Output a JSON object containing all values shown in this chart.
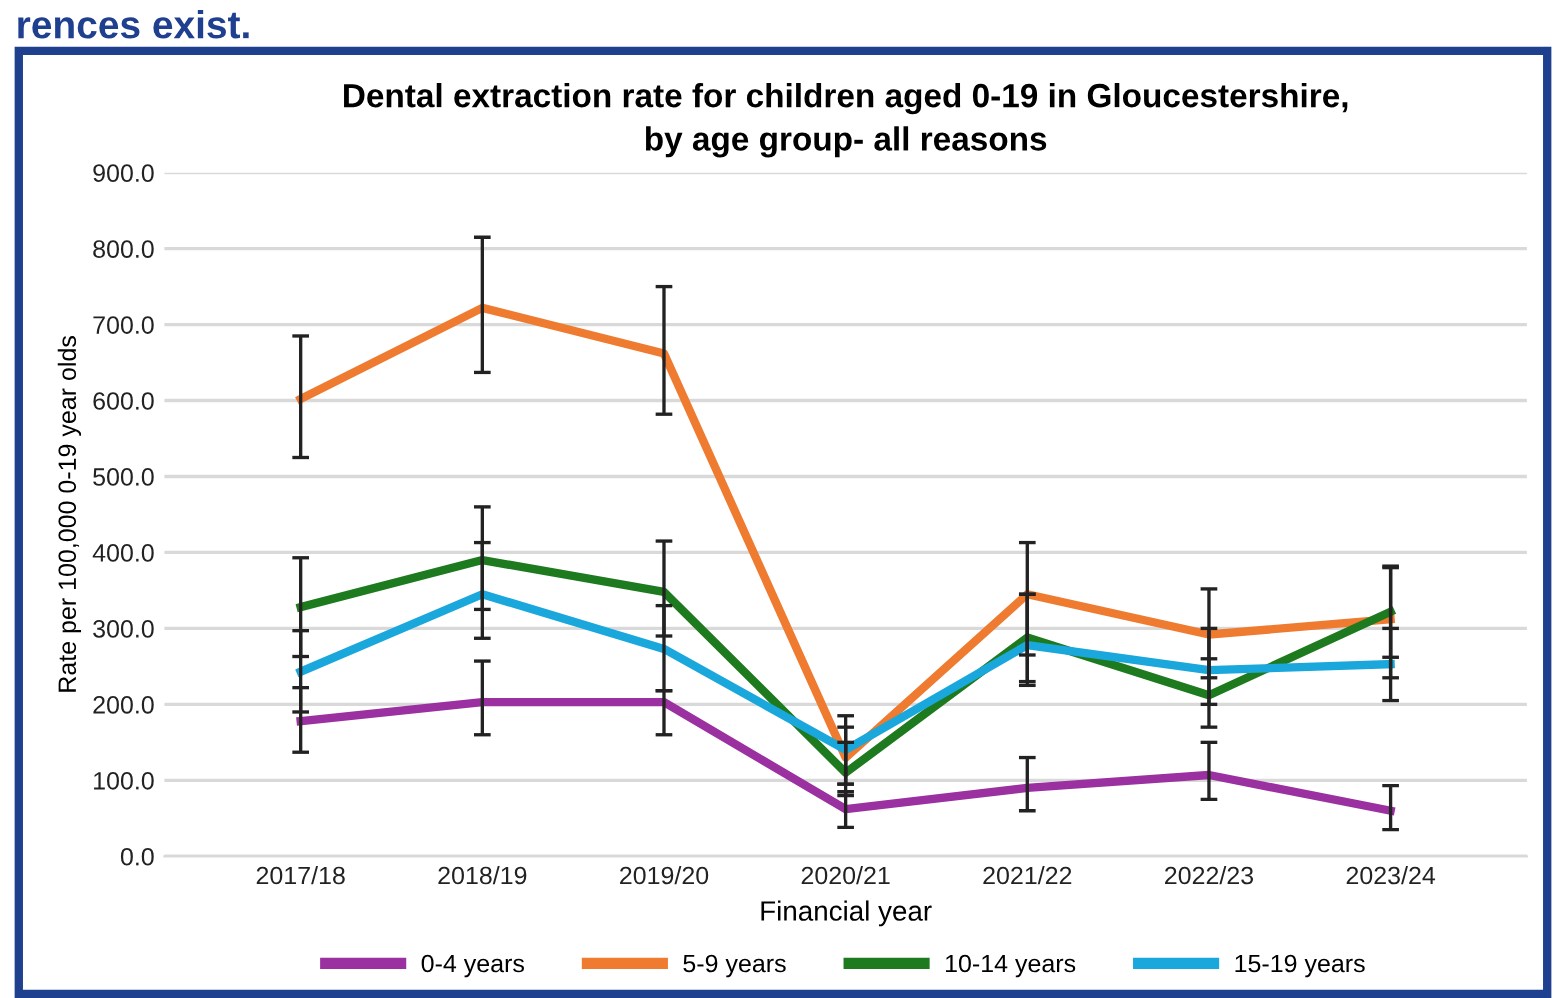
{
  "chart_data": {
    "type": "line",
    "title": "Dental extraction rate for children aged 0-19 in Gloucestershire,\nby age group- all reasons",
    "xlabel": "Financial year",
    "ylabel": "Rate per 100,000 0-19 year olds",
    "annotations": [
      "rences exist."
    ],
    "categories": [
      "2017/18",
      "2018/19",
      "2019/20",
      "2020/21",
      "2021/22",
      "2022/23",
      "2023/24"
    ],
    "series": [
      {
        "name": "0-4 years",
        "color": "#9b30a0",
        "values": [
          178,
          203,
          203,
          62,
          90,
          107,
          60
        ],
        "errors": [
          [
            137,
            222
          ],
          [
            160,
            257
          ],
          [
            160,
            218
          ],
          [
            38,
            85
          ],
          [
            60,
            130
          ],
          [
            75,
            150
          ],
          [
            35,
            93
          ]
        ]
      },
      {
        "name": "5-9 years",
        "color": "#ee7b30",
        "values": [
          602,
          722,
          662,
          130,
          345,
          292,
          312
        ],
        "errors": [
          [
            525,
            685
          ],
          [
            637,
            815
          ],
          [
            582,
            750
          ],
          [
            95,
            170
          ],
          [
            265,
            413
          ],
          [
            235,
            352
          ],
          [
            235,
            380
          ]
        ]
      },
      {
        "name": "10-14 years",
        "color": "#1e7a1e",
        "values": [
          328,
          390,
          348,
          110,
          288,
          212,
          322
        ],
        "errors": [
          [
            263,
            393
          ],
          [
            325,
            460
          ],
          [
            290,
            415
          ],
          [
            80,
            150
          ],
          [
            225,
            345
          ],
          [
            170,
            260
          ],
          [
            262,
            382
          ]
        ]
      },
      {
        "name": "15-19 years",
        "color": "#1aa7dc",
        "values": [
          243,
          345,
          273,
          140,
          278,
          245,
          253
        ],
        "errors": [
          [
            190,
            297
          ],
          [
            287,
            413
          ],
          [
            218,
            330
          ],
          [
            95,
            185
          ],
          [
            230,
            345
          ],
          [
            200,
            300
          ],
          [
            205,
            300
          ]
        ]
      }
    ],
    "ylim": [
      0,
      900
    ],
    "yticks": [
      {
        "value": 0,
        "label": "0.0"
      },
      {
        "value": 100,
        "label": "100.0"
      },
      {
        "value": 200,
        "label": "200.0"
      },
      {
        "value": 300,
        "label": "300.0"
      },
      {
        "value": 400,
        "label": "400.0"
      },
      {
        "value": 500,
        "label": "500.0"
      },
      {
        "value": 600,
        "label": "600.0"
      },
      {
        "value": 700,
        "label": "700.0"
      },
      {
        "value": 800,
        "label": "800.0"
      },
      {
        "value": 900,
        "label": "900.0"
      }
    ],
    "grid": "y",
    "legend": "bottom",
    "marker": "none",
    "line_style": "solid"
  }
}
